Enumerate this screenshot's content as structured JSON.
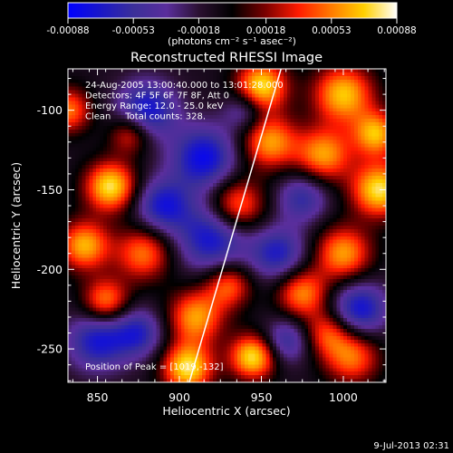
{
  "colorbar": {
    "ticks": [
      "-0.00088",
      "-0.00053",
      "-0.00018",
      "0.00018",
      "0.00053",
      "0.00088"
    ],
    "tick_values": [
      -0.00088,
      -0.00053,
      -0.00018,
      0.00018,
      0.00053,
      0.00088
    ],
    "range": [
      -0.00088,
      0.00088
    ],
    "unit_label": "(photons cm⁻² s⁻¹ asec⁻²)"
  },
  "plot": {
    "title": "Reconstructed RHESSI Image",
    "info_lines": [
      "24-Aug-2005 13:00:40.000 to 13:01:28.000",
      "Detectors: 4F 5F 6F 7F 8F, Att 0",
      "Energy Range: 12.0 - 25.0 keV",
      "Clean     Total counts: 328."
    ],
    "peak_label": "Position of Peak = [1019,-132]"
  },
  "footer": {
    "timestamp": "9-Jul-2013 02:31"
  },
  "colors": {
    "background": "#000000",
    "text": "#ffffff",
    "colormap": [
      "#0000ff",
      "#1a17c8",
      "#3b2f99",
      "#5a2e9c",
      "#2a1030",
      "#000000",
      "#7a0000",
      "#ff1a00",
      "#ff7a00",
      "#ffd000",
      "#ffffff"
    ]
  },
  "chart_data": {
    "type": "heatmap",
    "title": "Reconstructed RHESSI Image",
    "xlabel": "Heliocentric X (arcsec)",
    "ylabel": "Heliocentric Y (arcsec)",
    "xlim": [
      832,
      1026
    ],
    "ylim": [
      -271,
      -74
    ],
    "xticks": [
      850,
      900,
      950,
      1000
    ],
    "yticks": [
      -100,
      -150,
      -200,
      -250
    ],
    "limb_line": {
      "x": [
        906,
        962
      ],
      "y": [
        -271,
        -74
      ]
    },
    "peak": {
      "x": 1019,
      "y": -132
    },
    "sources": [
      {
        "x": 858,
        "y": -148,
        "amp": 1.0,
        "sigma": 11
      },
      {
        "x": 832,
        "y": -100,
        "amp": 0.7,
        "sigma": 10
      },
      {
        "x": 870,
        "y": -115,
        "amp": 0.6,
        "sigma": 9
      },
      {
        "x": 842,
        "y": -185,
        "amp": 0.85,
        "sigma": 11
      },
      {
        "x": 878,
        "y": -190,
        "amp": 0.7,
        "sigma": 12
      },
      {
        "x": 855,
        "y": -220,
        "amp": 0.75,
        "sigma": 10
      },
      {
        "x": 910,
        "y": -230,
        "amp": 0.8,
        "sigma": 12
      },
      {
        "x": 905,
        "y": -262,
        "amp": 1.0,
        "sigma": 11
      },
      {
        "x": 945,
        "y": -255,
        "amp": 1.0,
        "sigma": 10
      },
      {
        "x": 930,
        "y": -210,
        "amp": 0.65,
        "sigma": 10
      },
      {
        "x": 935,
        "y": -160,
        "amp": 0.75,
        "sigma": 12
      },
      {
        "x": 955,
        "y": -120,
        "amp": 0.8,
        "sigma": 12
      },
      {
        "x": 950,
        "y": -85,
        "amp": 1.0,
        "sigma": 11
      },
      {
        "x": 1000,
        "y": -90,
        "amp": 0.9,
        "sigma": 13
      },
      {
        "x": 988,
        "y": -128,
        "amp": 0.8,
        "sigma": 12
      },
      {
        "x": 1022,
        "y": -150,
        "amp": 1.0,
        "sigma": 12
      },
      {
        "x": 1020,
        "y": -115,
        "amp": 0.85,
        "sigma": 10
      },
      {
        "x": 1000,
        "y": -190,
        "amp": 0.8,
        "sigma": 12
      },
      {
        "x": 975,
        "y": -215,
        "amp": 0.75,
        "sigma": 11
      },
      {
        "x": 1005,
        "y": -255,
        "amp": 0.7,
        "sigma": 12
      },
      {
        "x": 990,
        "y": -240,
        "amp": 0.55,
        "sigma": 10
      },
      {
        "x": 880,
        "y": -100,
        "amp": -0.75,
        "sigma": 13
      },
      {
        "x": 915,
        "y": -130,
        "amp": -0.8,
        "sigma": 14
      },
      {
        "x": 890,
        "y": -160,
        "amp": -0.7,
        "sigma": 12
      },
      {
        "x": 920,
        "y": -180,
        "amp": -0.75,
        "sigma": 15
      },
      {
        "x": 850,
        "y": -245,
        "amp": -0.7,
        "sigma": 13
      },
      {
        "x": 875,
        "y": -240,
        "amp": -0.6,
        "sigma": 11
      },
      {
        "x": 960,
        "y": -190,
        "amp": -0.65,
        "sigma": 12
      },
      {
        "x": 975,
        "y": -155,
        "amp": -0.55,
        "sigma": 11
      },
      {
        "x": 1010,
        "y": -225,
        "amp": -0.75,
        "sigma": 12
      },
      {
        "x": 965,
        "y": -245,
        "amp": -0.55,
        "sigma": 10
      },
      {
        "x": 940,
        "y": -100,
        "amp": -0.45,
        "sigma": 9
      }
    ]
  }
}
